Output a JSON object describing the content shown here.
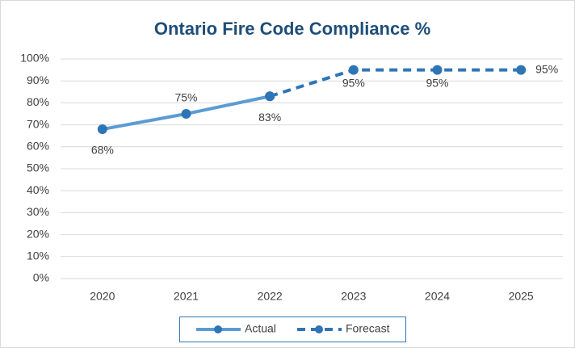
{
  "chart_data": {
    "type": "line",
    "title": "Ontario Fire Code Compliance %",
    "categories": [
      "2020",
      "2021",
      "2022",
      "2023",
      "2024",
      "2025"
    ],
    "series": [
      {
        "name": "Actual",
        "color": "#5b9bd5",
        "marker_color": "#2e75b6",
        "dashed": false,
        "values": [
          68,
          75,
          83,
          null,
          null,
          null
        ],
        "value_labels": [
          "68%",
          "75%",
          "83%",
          null,
          null,
          null
        ]
      },
      {
        "name": "Forecast",
        "color": "#2e75b6",
        "marker_color": "#2e75b6",
        "dashed": true,
        "values": [
          null,
          null,
          83,
          95,
          95,
          95
        ],
        "value_labels": [
          null,
          null,
          null,
          "95%",
          "95%",
          "95%"
        ]
      }
    ],
    "ylim": [
      0,
      100
    ],
    "yticks": [
      {
        "value": 0,
        "label": "0%"
      },
      {
        "value": 10,
        "label": "10%"
      },
      {
        "value": 20,
        "label": "20%"
      },
      {
        "value": 30,
        "label": "30%"
      },
      {
        "value": 40,
        "label": "40%"
      },
      {
        "value": 50,
        "label": "50%"
      },
      {
        "value": 60,
        "label": "60%"
      },
      {
        "value": 70,
        "label": "70%"
      },
      {
        "value": 80,
        "label": "80%"
      },
      {
        "value": 90,
        "label": "90%"
      },
      {
        "value": 100,
        "label": "100%"
      }
    ],
    "grid": true,
    "legend": "bottom"
  }
}
